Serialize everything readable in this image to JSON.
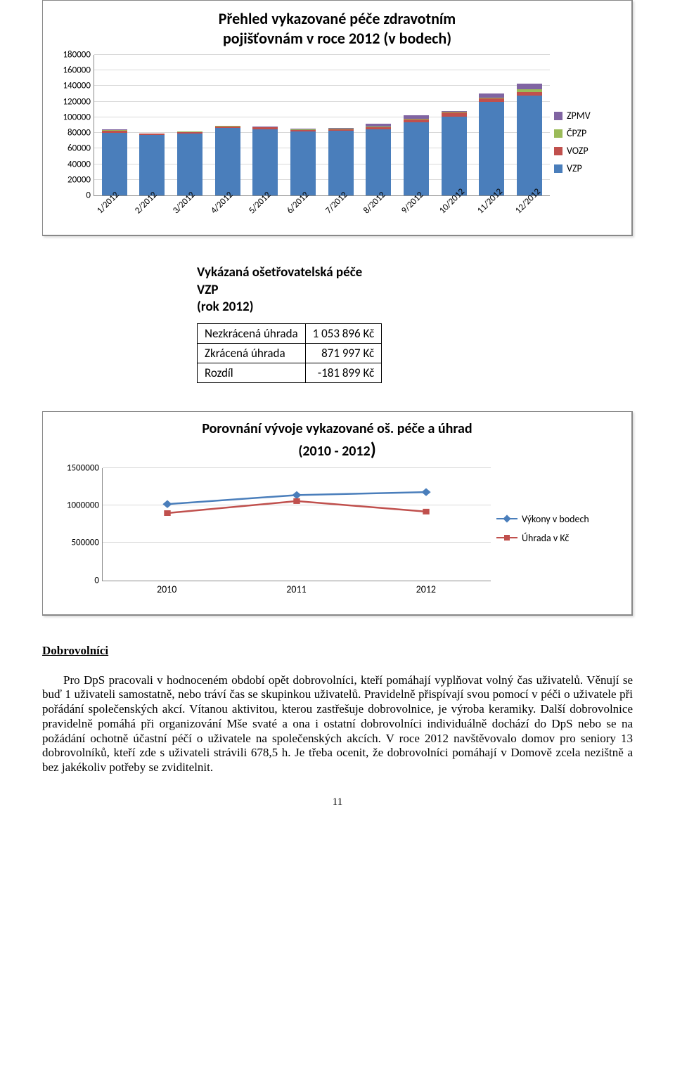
{
  "bar_chart": {
    "title_line1": "Přehled vykazované péče zdravotním",
    "title_line2": "pojišťovnám v roce 2012 (v bodech)",
    "title_fontsize": 22,
    "y_max": 180000,
    "y_step": 20000,
    "y_ticks": [
      "180000",
      "160000",
      "140000",
      "120000",
      "100000",
      "80000",
      "60000",
      "40000",
      "20000",
      "0"
    ],
    "categories": [
      "1/2012",
      "2/2012",
      "3/2012",
      "4/2012",
      "5/2012",
      "6/2012",
      "7/2012",
      "8/2012",
      "9/2012",
      "10/2012",
      "11/2012",
      "12/2012"
    ],
    "series": [
      {
        "name": "VZP",
        "color": "#4a7ebb",
        "values": [
          80000,
          77000,
          79000,
          86000,
          85000,
          82000,
          83000,
          85000,
          94000,
          101000,
          120000,
          128000
        ]
      },
      {
        "name": "VOZP",
        "color": "#c0504d",
        "values": [
          2500,
          1800,
          2000,
          2200,
          2000,
          2000,
          2000,
          2200,
          2800,
          5000,
          4000,
          4500
        ]
      },
      {
        "name": "ČPZP",
        "color": "#9bbb59",
        "values": [
          1500,
          500,
          700,
          700,
          600,
          700,
          700,
          1000,
          1200,
          800,
          1500,
          3000
        ]
      },
      {
        "name": "ZPMV",
        "color": "#8064a2",
        "values": [
          1000,
          300,
          400,
          400,
          300,
          400,
          400,
          3200,
          4500,
          1200,
          5000,
          8000
        ]
      }
    ],
    "legend_order": [
      "ZPMV",
      "ČPZP",
      "VOZP",
      "VZP"
    ],
    "background_color": "#ffffff",
    "grid_color": "#d9d9d9"
  },
  "mid_block": {
    "title_line1": "Vykázaná ošetřovatelská péče",
    "title_line2": "VZP",
    "title_line3": "(rok 2012)",
    "rows": [
      [
        "Nezkrácená úhrada",
        "1 053 896 Kč"
      ],
      [
        "Zkrácená úhrada",
        "871 997 Kč"
      ],
      [
        "Rozdíl",
        "-181 899 Kč"
      ]
    ]
  },
  "line_chart": {
    "title_line1": "Porovnání vývoje vykazované oš. péče a úhrad",
    "title_line2": "(2010 - 2012)",
    "title_fontsize": 20,
    "y_ticks": [
      "1500000",
      "1000000",
      "500000",
      "0"
    ],
    "y_max": 1500000,
    "categories": [
      "2010",
      "2011",
      "2012"
    ],
    "series": [
      {
        "name": "Výkony v bodech",
        "color": "#4a7ebb",
        "marker": "diamond",
        "values": [
          1020000,
          1140000,
          1180000
        ]
      },
      {
        "name": "Úhrada v Kč",
        "color": "#c0504d",
        "marker": "square",
        "values": [
          900000,
          1060000,
          920000
        ]
      }
    ],
    "background_color": "#ffffff",
    "grid_color": "#d9d9d9"
  },
  "section_heading": "Dobrovolníci",
  "body_paragraph": "Pro DpS pracovali v hodnoceném období opět dobrovolníci, kteří pomáhají vyplňovat volný čas uživatelů. Věnují se buď 1 uživateli samostatně, nebo tráví čas se skupinkou uživatelů. Pravidelně přispívají svou pomocí v péči o uživatele při pořádání společenských akcí. Vítanou aktivitou, kterou zastřešuje dobrovolnice, je výroba keramiky. Další dobrovolnice pravidelně pomáhá při organizování Mše svaté a ona i ostatní dobrovolníci individuálně dochází do DpS nebo se na požádání ochotně účastní péčí o uživatele na společenských akcích. V roce 2012 navštěvovalo domov pro seniory 13 dobrovolníků, kteří zde s uživateli strávili 678,5 h. Je třeba ocenit, že dobrovolníci pomáhají v Domově zcela nezištně a bez jakékoliv potřeby se zviditelnit.",
  "page_number": "11"
}
